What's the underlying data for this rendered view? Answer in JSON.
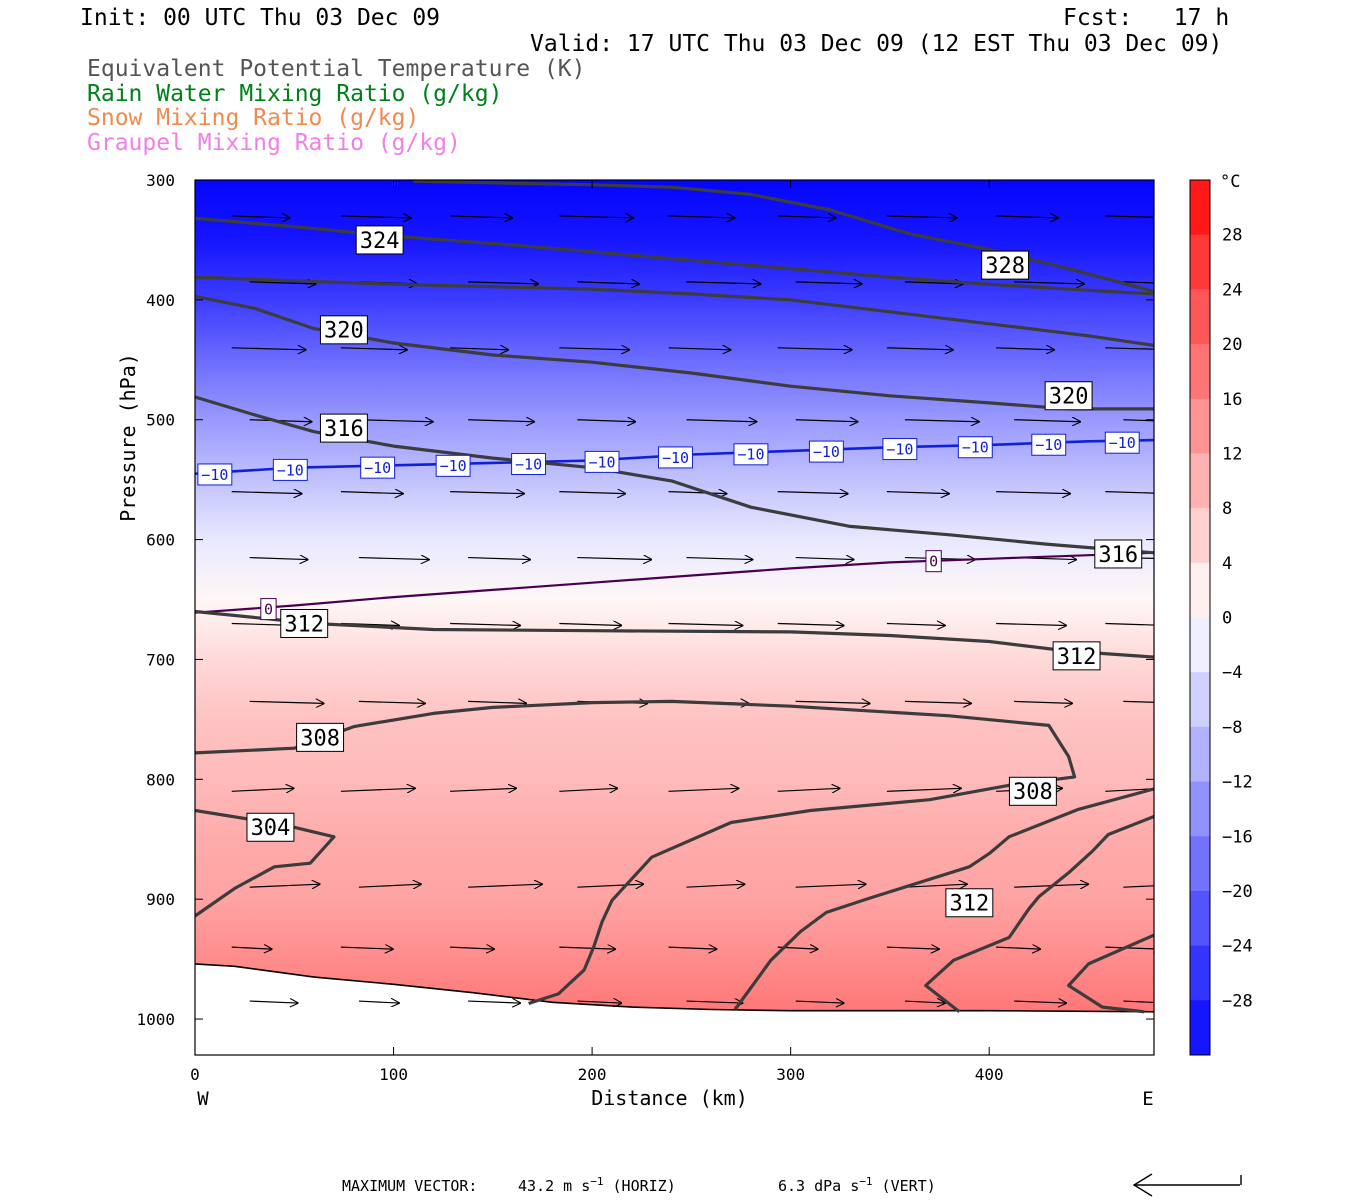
{
  "header": {
    "init": "Init: 00 UTC Thu 03 Dec 09",
    "fcst": "Fcst:   17 h",
    "valid": "Valid: 17 UTC Thu 03 Dec 09 (12 EST Thu 03 Dec 09)",
    "fields": [
      {
        "label": "Equivalent Potential Temperature (K)",
        "color": "#555555"
      },
      {
        "label": "Rain Water Mixing Ratio (g/kg)",
        "color": "#00801a"
      },
      {
        "label": "Snow Mixing Ratio (g/kg)",
        "color": "#f08a50"
      },
      {
        "label": "Graupel Mixing Ratio (g/kg)",
        "color": "#f080e8"
      }
    ]
  },
  "chart_data": {
    "type": "heatmap",
    "xlabel": "Distance (km)",
    "ylabel": "Pressure (hPa)",
    "xlim": [
      0,
      483
    ],
    "ylim": [
      1030,
      300
    ],
    "x_ticks": [
      0,
      100,
      200,
      300,
      400
    ],
    "y_ticks": [
      300,
      400,
      500,
      600,
      700,
      800,
      900,
      1000
    ],
    "west_label": "W",
    "east_label": "E",
    "fill_field": {
      "units": "°C",
      "colorbar_labels": [
        28,
        24,
        20,
        16,
        12,
        8,
        4,
        0,
        -4,
        -8,
        -12,
        -16,
        -20,
        -24,
        -28
      ],
      "colorbar_range": [
        -32,
        32
      ],
      "temperature_profile": [
        [
          300,
          -34
        ],
        [
          350,
          -30
        ],
        [
          400,
          -25
        ],
        [
          450,
          -19
        ],
        [
          500,
          -13
        ],
        [
          550,
          -8
        ],
        [
          600,
          -3
        ],
        [
          650,
          1
        ],
        [
          700,
          5
        ],
        [
          750,
          8
        ],
        [
          800,
          9
        ],
        [
          850,
          11
        ],
        [
          900,
          12
        ],
        [
          950,
          15
        ],
        [
          1000,
          18
        ]
      ]
    },
    "theta_e_contours": [
      {
        "label": "324",
        "points": [
          [
            0,
            332
          ],
          [
            50,
            339
          ],
          [
            100,
            347
          ],
          [
            150,
            353
          ],
          [
            200,
            360
          ],
          [
            250,
            367
          ],
          [
            300,
            374
          ],
          [
            350,
            381
          ],
          [
            400,
            387
          ],
          [
            450,
            392
          ],
          [
            483,
            395
          ]
        ]
      },
      {
        "label": "328",
        "points": [
          [
            110,
            301
          ],
          [
            200,
            304
          ],
          [
            240,
            306
          ],
          [
            280,
            312
          ],
          [
            320,
            325
          ],
          [
            340,
            335
          ],
          [
            360,
            345
          ],
          [
            400,
            358
          ],
          [
            440,
            374
          ],
          [
            483,
            393
          ]
        ]
      },
      {
        "label": "320",
        "points": [
          [
            0,
            397
          ],
          [
            30,
            407
          ],
          [
            60,
            424
          ],
          [
            100,
            436
          ],
          [
            150,
            446
          ],
          [
            200,
            452
          ],
          [
            250,
            461
          ],
          [
            300,
            472
          ],
          [
            350,
            480
          ],
          [
            400,
            486
          ],
          [
            440,
            491
          ],
          [
            483,
            491
          ]
        ]
      },
      {
        "label": "320",
        "points": [
          [
            0,
            381
          ],
          [
            50,
            384
          ],
          [
            100,
            387
          ],
          [
            150,
            389
          ],
          [
            200,
            391
          ],
          [
            250,
            395
          ],
          [
            300,
            400
          ],
          [
            350,
            410
          ],
          [
            400,
            420
          ],
          [
            450,
            430
          ],
          [
            483,
            438
          ]
        ]
      },
      {
        "label": "316",
        "points": [
          [
            0,
            481
          ],
          [
            30,
            496
          ],
          [
            60,
            510
          ],
          [
            100,
            522
          ],
          [
            150,
            532
          ],
          [
            200,
            540
          ],
          [
            240,
            551
          ],
          [
            280,
            573
          ],
          [
            330,
            589
          ],
          [
            380,
            596
          ],
          [
            430,
            604
          ],
          [
            483,
            611
          ]
        ]
      },
      {
        "label": "312",
        "points": [
          [
            0,
            660
          ],
          [
            60,
            670
          ],
          [
            120,
            675
          ],
          [
            200,
            676
          ],
          [
            300,
            677
          ],
          [
            350,
            680
          ],
          [
            400,
            685
          ],
          [
            440,
            693
          ],
          [
            483,
            698
          ]
        ]
      },
      {
        "label": "308",
        "points": [
          [
            0,
            778
          ],
          [
            50,
            774
          ],
          [
            80,
            756
          ],
          [
            120,
            745
          ],
          [
            150,
            740
          ],
          [
            200,
            736
          ],
          [
            240,
            735
          ],
          [
            300,
            739
          ],
          [
            380,
            747
          ],
          [
            430,
            755
          ],
          [
            440,
            781
          ],
          [
            443,
            798
          ],
          [
            410,
            805
          ],
          [
            370,
            817
          ],
          [
            310,
            826
          ],
          [
            270,
            836
          ],
          [
            230,
            865
          ],
          [
            220,
            883
          ],
          [
            210,
            901
          ],
          [
            205,
            919
          ],
          [
            201,
            939
          ],
          [
            196,
            959
          ],
          [
            183,
            979
          ],
          [
            168,
            987
          ]
        ]
      },
      {
        "label": "304",
        "points": [
          [
            0,
            826
          ],
          [
            45,
            838
          ],
          [
            70,
            848
          ],
          [
            58,
            870
          ],
          [
            40,
            873
          ],
          [
            20,
            891
          ],
          [
            0,
            914
          ]
        ]
      },
      {
        "label": "312",
        "points": [
          [
            483,
            808
          ],
          [
            445,
            825
          ],
          [
            410,
            848
          ],
          [
            400,
            862
          ],
          [
            390,
            873
          ],
          [
            340,
            899
          ],
          [
            318,
            911
          ],
          [
            305,
            927
          ],
          [
            290,
            951
          ],
          [
            272,
            992
          ]
        ]
      },
      {
        "label": "",
        "points": [
          [
            483,
            831
          ],
          [
            460,
            846
          ],
          [
            452,
            860
          ],
          [
            440,
            878
          ],
          [
            425,
            898
          ],
          [
            420,
            908
          ],
          [
            410,
            932
          ],
          [
            382,
            951
          ],
          [
            368,
            972
          ],
          [
            385,
            994
          ]
        ]
      },
      {
        "label": "",
        "points": [
          [
            483,
            930
          ],
          [
            450,
            954
          ],
          [
            440,
            972
          ],
          [
            457,
            990
          ],
          [
            478,
            994
          ]
        ]
      }
    ],
    "freezing_level": {
      "label": "0",
      "points": [
        [
          0,
          661
        ],
        [
          50,
          655
        ],
        [
          100,
          648
        ],
        [
          150,
          642
        ],
        [
          200,
          636
        ],
        [
          250,
          630
        ],
        [
          300,
          624
        ],
        [
          350,
          619
        ],
        [
          400,
          616
        ],
        [
          483,
          611
        ]
      ]
    },
    "minus10_isotherm": {
      "label": "−10",
      "points": [
        [
          0,
          545
        ],
        [
          50,
          540
        ],
        [
          100,
          538
        ],
        [
          150,
          536
        ],
        [
          200,
          534
        ],
        [
          250,
          529
        ],
        [
          300,
          526
        ],
        [
          350,
          523
        ],
        [
          400,
          521
        ],
        [
          450,
          518
        ],
        [
          483,
          517
        ]
      ]
    },
    "terrain": [
      [
        0,
        954
      ],
      [
        20,
        956
      ],
      [
        60,
        965
      ],
      [
        100,
        971
      ],
      [
        140,
        978
      ],
      [
        180,
        986
      ],
      [
        220,
        990
      ],
      [
        260,
        992
      ],
      [
        300,
        993
      ],
      [
        400,
        993
      ],
      [
        483,
        994
      ]
    ],
    "vector_rows_hpa": [
      330,
      385,
      440,
      500,
      560,
      615,
      670,
      735,
      810,
      890,
      940,
      985
    ],
    "vector_columns_km": [
      20,
      75,
      130,
      185,
      240,
      295,
      350,
      405,
      460
    ],
    "max_vector": {
      "label": "MAXIMUM VECTOR:",
      "horiz_value": "43.2 m s",
      "horiz_unit": " (HORIZ)",
      "vert_value": "6.3 dPa s",
      "vert_unit": " (VERT)",
      "exponent": "−1"
    }
  }
}
